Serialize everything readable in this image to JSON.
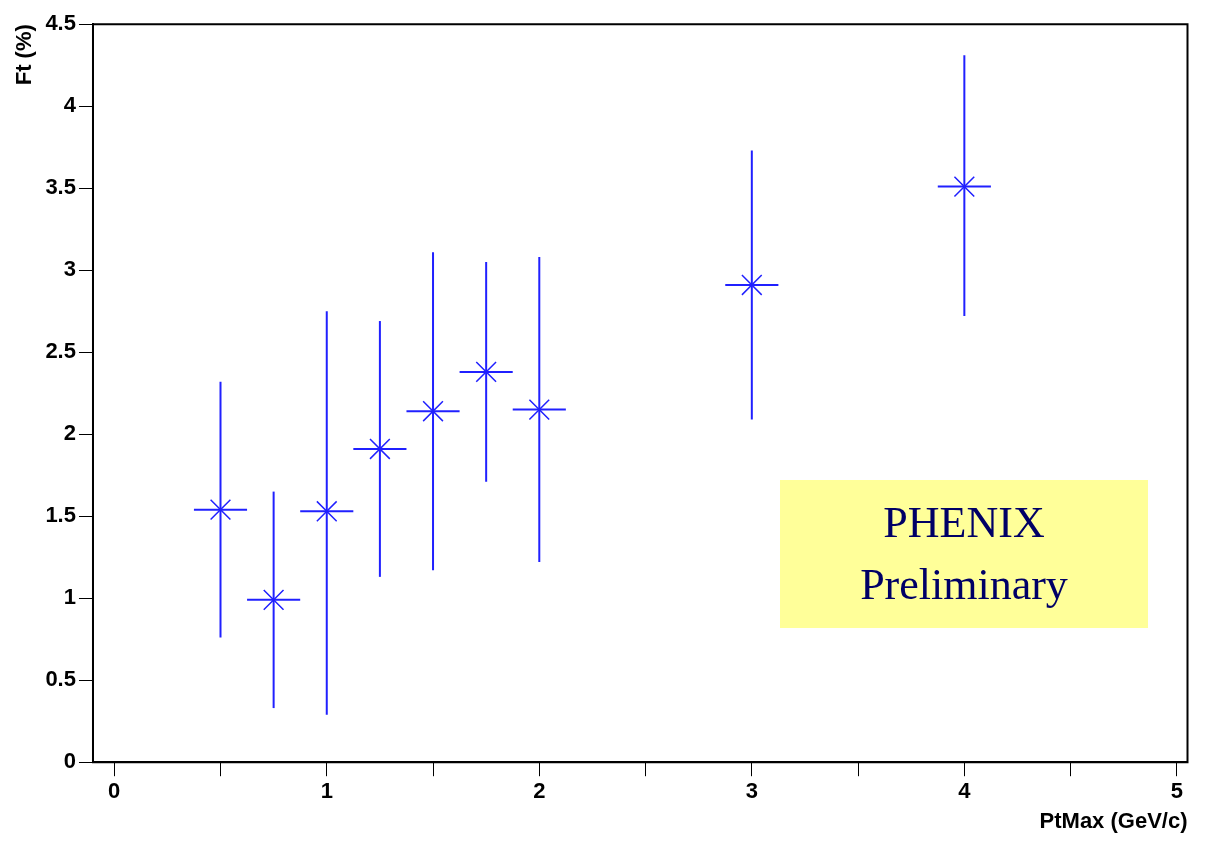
{
  "chart_data": {
    "type": "scatter",
    "xlabel": "PtMax (GeV/c)",
    "ylabel": "Ft (%)",
    "x": [
      0.5,
      0.75,
      1,
      1.25,
      1.5,
      1.75,
      2,
      3,
      4
    ],
    "series": [
      {
        "color": "#2020ff",
        "values": [
          1.54,
          0.99,
          1.53,
          1.91,
          2.14,
          2.38,
          2.15,
          2.91,
          3.51
        ],
        "errors": [
          [
            0.76,
            2.32
          ],
          [
            0.33,
            1.65
          ],
          [
            0.29,
            2.75
          ],
          [
            1.13,
            2.69
          ],
          [
            1.17,
            3.11
          ],
          [
            1.71,
            3.05
          ],
          [
            1.22,
            3.08
          ],
          [
            2.09,
            3.73
          ],
          [
            2.72,
            4.31
          ]
        ],
        "xerrors": [
          0.125,
          0.125,
          0.125,
          0.125,
          0.125,
          0.125,
          0.125,
          0.125,
          0.125
        ]
      }
    ],
    "xlim": [
      -0.1,
      5.05
    ],
    "ylim": [
      0,
      4.5
    ],
    "xticks": [
      0,
      {
        "value": 0.5,
        "label": null
      },
      1,
      {
        "value": 1.5,
        "label": null
      },
      2,
      {
        "value": 2.5,
        "label": null
      },
      3,
      {
        "value": 3.5,
        "label": null
      },
      4,
      {
        "value": 4.5,
        "label": null
      },
      5
    ],
    "yticks": [
      0,
      0.5,
      1,
      1.5,
      2,
      2.5,
      3,
      3.5,
      4,
      4.5
    ],
    "marker": "cross",
    "grid": false,
    "legend": false,
    "annotations": [
      "PHENIX\nPreliminary"
    ]
  }
}
